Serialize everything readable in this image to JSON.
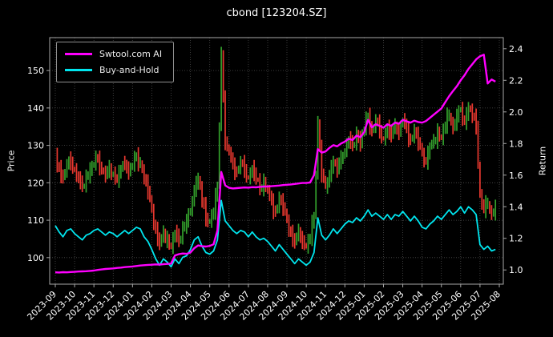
{
  "chart_data": {
    "type": "line",
    "title": "cbond [123204.SZ]",
    "background": "#000000",
    "grid": {
      "color": "#4d4d4d",
      "style": "dotted"
    },
    "x_tick_labels": [
      "2023-09",
      "2023-10",
      "2023-11",
      "2023-12",
      "2024-01",
      "2024-02",
      "2024-03",
      "2024-04",
      "2024-05",
      "2024-06",
      "2024-07",
      "2024-08",
      "2024-09",
      "2024-10",
      "2024-11",
      "2024-12",
      "2025-01",
      "2025-02",
      "2025-03",
      "2025-04",
      "2025-05",
      "2025-06",
      "2025-07",
      "2025-08"
    ],
    "x_span_months": 22.8,
    "left_axis": {
      "label": "Price",
      "ticks": [
        100,
        110,
        120,
        130,
        140,
        150
      ],
      "range": [
        92.9,
        158.8
      ]
    },
    "right_axis": {
      "label": "Return",
      "ticks": [
        1.0,
        1.2,
        1.4,
        1.6,
        1.8,
        2.0,
        2.2,
        2.4
      ],
      "range": [
        0.91,
        2.47
      ]
    },
    "price_series": {
      "name": "cbond candlestick price",
      "style": "candlestick",
      "axis": "left",
      "up_color": "#33a02c",
      "down_color": "#e8382f",
      "values": [
        127.5,
        123.8,
        121.2,
        124.5,
        125.6,
        123.4,
        120.8,
        118.9,
        121.7,
        123.2,
        125.1,
        126.3,
        123.6,
        121.9,
        123.8,
        122.5,
        120.9,
        123.4,
        125.2,
        123.1,
        124.8,
        127.2,
        125.5,
        121.4,
        117.8,
        112.5,
        107.3,
        103.4,
        106.8,
        104.9,
        102.8,
        106.5,
        104.2,
        107.9,
        109.4,
        112.8,
        118.5,
        121.3,
        115.2,
        110.6,
        109.8,
        112.4,
        118.9,
        154.5,
        131.0,
        127.8,
        124.5,
        122.9,
        125.3,
        123.6,
        121.4,
        123.8,
        120.9,
        118.5,
        120.2,
        117.6,
        114.9,
        112.3,
        115.8,
        113.4,
        109.7,
        106.5,
        103.8,
        107.2,
        104.6,
        102.9,
        105.4,
        110.8,
        136.0,
        122.4,
        118.9,
        122.5,
        125.8,
        123.2,
        126.4,
        128.7,
        131.5,
        129.8,
        133.2,
        130.6,
        134.5,
        137.8,
        133.8,
        136.5,
        134.1,
        131.8,
        134.6,
        132.2,
        135.4,
        133.7,
        136.8,
        134.2,
        131.5,
        133.9,
        130.8,
        127.5,
        125.8,
        129.4,
        131.2,
        133.6,
        131.9,
        135.4,
        138.2,
        134.8,
        137.5,
        139.8,
        136.4,
        140.2,
        137.8,
        135.2,
        116.5,
        112.8,
        114.6,
        111.9,
        113.2
      ]
    },
    "series": [
      {
        "id": "ai",
        "name": "Swtool.com AI",
        "color": "#ff00ff",
        "axis": "right",
        "values": [
          0.985,
          0.984,
          0.986,
          0.985,
          0.987,
          0.988,
          0.99,
          0.991,
          0.992,
          0.994,
          0.996,
          1.0,
          1.003,
          1.006,
          1.008,
          1.01,
          1.013,
          1.015,
          1.018,
          1.02,
          1.022,
          1.025,
          1.028,
          1.03,
          1.032,
          1.033,
          1.035,
          1.034,
          1.036,
          1.038,
          1.04,
          1.092,
          1.1,
          1.104,
          1.102,
          1.11,
          1.138,
          1.155,
          1.15,
          1.148,
          1.152,
          1.162,
          1.25,
          1.62,
          1.535,
          1.52,
          1.516,
          1.518,
          1.52,
          1.522,
          1.521,
          1.524,
          1.523,
          1.526,
          1.528,
          1.528,
          1.53,
          1.532,
          1.534,
          1.537,
          1.539,
          1.541,
          1.544,
          1.547,
          1.55,
          1.55,
          1.553,
          1.6,
          1.765,
          1.742,
          1.75,
          1.772,
          1.79,
          1.782,
          1.8,
          1.812,
          1.83,
          1.822,
          1.85,
          1.84,
          1.872,
          1.95,
          1.902,
          1.922,
          1.912,
          1.9,
          1.922,
          1.912,
          1.932,
          1.925,
          1.95,
          1.94,
          1.932,
          1.945,
          1.936,
          1.932,
          1.942,
          1.962,
          1.982,
          2.002,
          2.022,
          2.062,
          2.1,
          2.132,
          2.162,
          2.2,
          2.232,
          2.272,
          2.302,
          2.332,
          2.352,
          2.362,
          2.18,
          2.205,
          2.192
        ]
      },
      {
        "id": "bh",
        "name": "Buy-and-Hold",
        "color": "#00e5ee",
        "axis": "right",
        "values": [
          1.28,
          1.24,
          1.21,
          1.25,
          1.26,
          1.23,
          1.21,
          1.19,
          1.22,
          1.23,
          1.25,
          1.26,
          1.24,
          1.22,
          1.24,
          1.23,
          1.21,
          1.23,
          1.25,
          1.23,
          1.25,
          1.27,
          1.26,
          1.21,
          1.18,
          1.13,
          1.07,
          1.03,
          1.07,
          1.05,
          1.02,
          1.07,
          1.04,
          1.08,
          1.09,
          1.13,
          1.19,
          1.21,
          1.15,
          1.11,
          1.1,
          1.12,
          1.19,
          1.44,
          1.31,
          1.28,
          1.25,
          1.23,
          1.25,
          1.24,
          1.21,
          1.24,
          1.21,
          1.19,
          1.2,
          1.18,
          1.15,
          1.12,
          1.16,
          1.13,
          1.1,
          1.07,
          1.04,
          1.07,
          1.05,
          1.03,
          1.05,
          1.11,
          1.33,
          1.22,
          1.19,
          1.22,
          1.26,
          1.23,
          1.26,
          1.29,
          1.31,
          1.3,
          1.33,
          1.31,
          1.34,
          1.38,
          1.34,
          1.36,
          1.34,
          1.32,
          1.35,
          1.32,
          1.35,
          1.34,
          1.37,
          1.34,
          1.31,
          1.34,
          1.31,
          1.27,
          1.26,
          1.29,
          1.31,
          1.34,
          1.32,
          1.35,
          1.38,
          1.35,
          1.37,
          1.4,
          1.36,
          1.4,
          1.38,
          1.35,
          1.16,
          1.13,
          1.15,
          1.12,
          1.13
        ]
      }
    ]
  }
}
